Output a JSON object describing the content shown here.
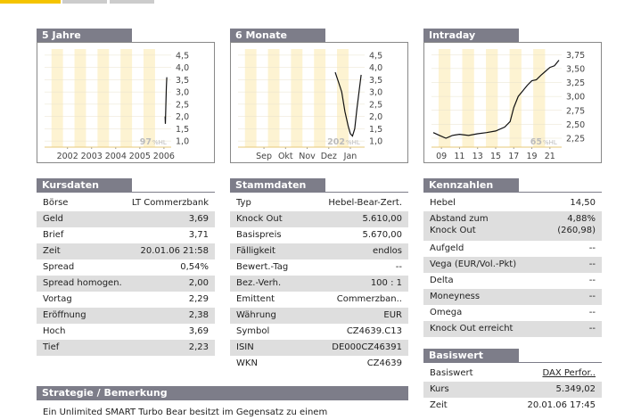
{
  "charts": [
    {
      "type": "line",
      "title": "5 Jahre",
      "hl_label": "97",
      "hl_unit": "%HL",
      "xlim": [
        2001.05,
        2006.3
      ],
      "ylim": [
        0.75,
        4.75
      ],
      "xticks": [
        2002,
        2003,
        2004,
        2005,
        2006
      ],
      "yticks": [
        {
          "value": 1,
          "label": "1,0"
        },
        {
          "value": 1.5,
          "label": "1,5"
        },
        {
          "value": 2,
          "label": "2,0"
        },
        {
          "value": 2.5,
          "label": "2,5"
        },
        {
          "value": 3,
          "label": "3,0"
        },
        {
          "value": 3.5,
          "label": "3,5"
        },
        {
          "value": 4,
          "label": "4,0"
        },
        {
          "value": 4.5,
          "label": "4,5"
        }
      ],
      "x": [
        2006.05,
        2006.06,
        2006.08,
        2006.1,
        2006.12
      ],
      "values": [
        2,
        1.7,
        2.4,
        3.2,
        3.6
      ]
    },
    {
      "type": "line",
      "title": "6 Monate",
      "hl_label": "202",
      "hl_unit": "%HL",
      "xlim": [
        -0.2,
        5.66
      ],
      "ylim": [
        0.75,
        4.75
      ],
      "xticks": [
        {
          "value": 1,
          "label": "Sep"
        },
        {
          "value": 2,
          "label": "Okt"
        },
        {
          "value": 3,
          "label": "Nov"
        },
        {
          "value": 4,
          "label": "Dez"
        },
        {
          "value": 5,
          "label": "Jan"
        }
      ],
      "yticks": [
        {
          "value": 1,
          "label": "1,0"
        },
        {
          "value": 1.5,
          "label": "1,5"
        },
        {
          "value": 2,
          "label": "2,0"
        },
        {
          "value": 2.5,
          "label": "2,5"
        },
        {
          "value": 3,
          "label": "3,0"
        },
        {
          "value": 3.5,
          "label": "3,5"
        },
        {
          "value": 4,
          "label": "4,0"
        },
        {
          "value": 4.5,
          "label": "4,5"
        }
      ],
      "x": [
        4.3,
        4.45,
        4.6,
        4.75,
        4.9,
        5.0,
        5.1,
        5.2,
        5.3,
        5.4,
        5.5
      ],
      "values": [
        3.8,
        3.4,
        3.0,
        2.2,
        1.6,
        1.3,
        1.2,
        1.5,
        2.3,
        3.0,
        3.7
      ]
    },
    {
      "type": "line",
      "title": "Intraday",
      "hl_label": "65",
      "hl_unit": "%HL",
      "xlim": [
        7.9,
        22.3
      ],
      "ylim": [
        2.09,
        3.85
      ],
      "xticks": [
        {
          "value": 9,
          "label": "09"
        },
        {
          "value": 11,
          "label": "11"
        },
        {
          "value": 13,
          "label": "13"
        },
        {
          "value": 15,
          "label": "15"
        },
        {
          "value": 17,
          "label": "17"
        },
        {
          "value": 19,
          "label": "19"
        },
        {
          "value": 21,
          "label": "21"
        }
      ],
      "yticks": [
        {
          "value": 2.25,
          "label": "2,25"
        },
        {
          "value": 2.5,
          "label": "2,50"
        },
        {
          "value": 2.75,
          "label": "2,75"
        },
        {
          "value": 3,
          "label": "3,00"
        },
        {
          "value": 3.25,
          "label": "3,25"
        },
        {
          "value": 3.5,
          "label": "3,50"
        },
        {
          "value": 3.75,
          "label": "3,75"
        }
      ],
      "x": [
        8.1,
        8.8,
        9.5,
        10.2,
        11,
        12,
        13,
        14,
        15,
        16,
        16.6,
        17,
        17.5,
        18,
        18.5,
        19,
        19.5,
        20,
        20.5,
        21,
        21.5,
        22
      ],
      "values": [
        2.35,
        2.3,
        2.25,
        2.3,
        2.32,
        2.3,
        2.33,
        2.35,
        2.38,
        2.45,
        2.55,
        2.8,
        3.0,
        3.1,
        3.2,
        3.28,
        3.3,
        3.38,
        3.45,
        3.52,
        3.55,
        3.65
      ]
    }
  ],
  "kursdaten": {
    "title": "Kursdaten",
    "rows": [
      [
        "Börse",
        "LT Commerzbank"
      ],
      [
        "Geld",
        "3,69"
      ],
      [
        "Brief",
        "3,71"
      ],
      [
        "Zeit",
        "20.01.06  21:58"
      ],
      [
        "Spread",
        "0,54%"
      ],
      [
        "Spread homogen.",
        "2,00"
      ],
      [
        "Vortag",
        "2,29"
      ],
      [
        "Eröffnung",
        "2,38"
      ],
      [
        "Hoch",
        "3,69"
      ],
      [
        "Tief",
        "2,23"
      ]
    ]
  },
  "stammdaten": {
    "title": "Stammdaten",
    "rows": [
      [
        "Typ",
        "Hebel-Bear-Zert."
      ],
      [
        "Knock Out",
        "5.610,00"
      ],
      [
        "Basispreis",
        "5.670,00"
      ],
      [
        "Fälligkeit",
        "endlos"
      ],
      [
        "Bewert.-Tag",
        "--"
      ],
      [
        "Bez.-Verh.",
        "100 : 1"
      ],
      [
        "Emittent",
        "Commerzban.."
      ],
      [
        "Währung",
        "EUR"
      ],
      [
        "Symbol",
        "CZ4639.C13"
      ],
      [
        "ISIN",
        "DE000CZ46391"
      ],
      [
        "WKN",
        "CZ4639"
      ]
    ]
  },
  "kennzahlen": {
    "title": "Kennzahlen",
    "rows": [
      [
        "Hebel",
        "14,50"
      ],
      [
        "Abstand zum\nKnock Out",
        "4,88%\n(260,98)"
      ],
      [
        "Aufgeld",
        "--"
      ],
      [
        "Vega (EUR/Vol.-Pkt)",
        "--"
      ],
      [
        "Delta",
        "--"
      ],
      [
        "Moneyness",
        "--"
      ],
      [
        "Omega",
        "--"
      ],
      [
        "Knock Out erreicht",
        "--"
      ]
    ]
  },
  "basiswert": {
    "title": "Basiswert",
    "rows": [
      [
        "Basiswert",
        "DAX Perfor.."
      ],
      [
        "Kurs",
        "5.349,02"
      ],
      [
        "Zeit",
        "20.01.06  17:45"
      ]
    ]
  },
  "strategie": {
    "title": "Strategie / Bemerkung",
    "text": "Ein Unlimited SMART Turbo Bear besitzt im Gegensatz zu einem"
  }
}
